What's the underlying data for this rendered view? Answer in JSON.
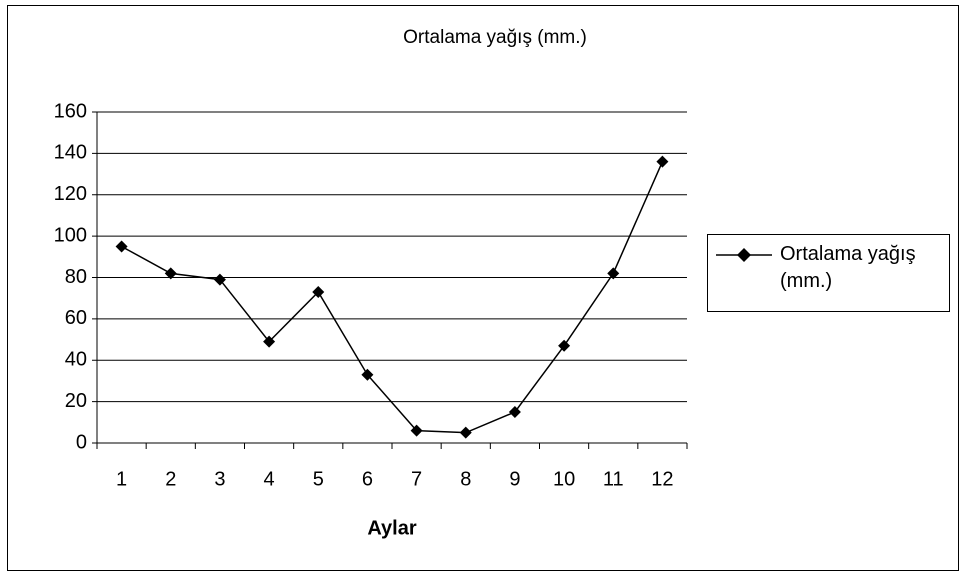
{
  "chart_data": {
    "type": "line",
    "title": "Ortalama yağış (mm.)",
    "x_label": "Aylar",
    "categories": [
      "1",
      "2",
      "3",
      "4",
      "5",
      "6",
      "7",
      "8",
      "9",
      "10",
      "11",
      "12"
    ],
    "series": [
      {
        "name": "Ortalama yağış (mm.)",
        "color": "#000000",
        "values": [
          95,
          82,
          79,
          49,
          73,
          33,
          6,
          5,
          15,
          47,
          82,
          136
        ]
      }
    ],
    "ylim": [
      0,
      160
    ],
    "yticks": [
      0,
      20,
      40,
      60,
      80,
      100,
      120,
      140,
      160
    ],
    "grid": true,
    "legend": "right"
  }
}
